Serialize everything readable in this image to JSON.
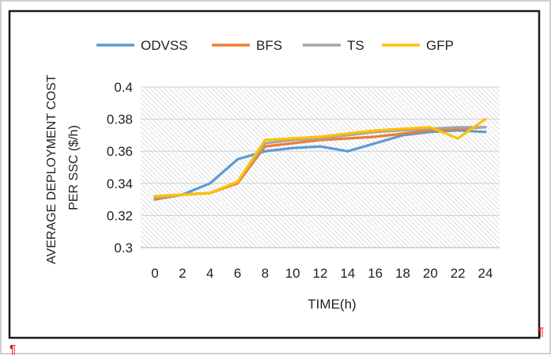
{
  "chart_data": {
    "type": "line",
    "xlabel": "TIME(h)",
    "ylabel_lines": [
      "AVERAGE DEPLOYMENT COST",
      "PER SSC ($/h)"
    ],
    "x": [
      0,
      2,
      4,
      6,
      8,
      10,
      12,
      14,
      16,
      18,
      20,
      22,
      24
    ],
    "x_ticks": [
      "0",
      "2",
      "4",
      "6",
      "8",
      "10",
      "12",
      "14",
      "16",
      "18",
      "20",
      "22",
      "24"
    ],
    "y_ticks": [
      "0.3",
      "0.32",
      "0.34",
      "0.36",
      "0.38",
      "0.4"
    ],
    "ylim": [
      0.3,
      0.4
    ],
    "xlim": [
      0,
      24
    ],
    "grid": true,
    "legend_position": "top",
    "series": [
      {
        "name": "ODVSS",
        "color": "#5b9bd5",
        "values": [
          0.33,
          0.333,
          0.34,
          0.355,
          0.36,
          0.362,
          0.363,
          0.36,
          0.365,
          0.37,
          0.372,
          0.373,
          0.372
        ]
      },
      {
        "name": "BFS",
        "color": "#ed7d31",
        "values": [
          0.33,
          0.333,
          0.334,
          0.34,
          0.363,
          0.365,
          0.367,
          0.368,
          0.369,
          0.371,
          0.373,
          0.374,
          0.375
        ]
      },
      {
        "name": "TS",
        "color": "#a5a5a5",
        "values": [
          0.331,
          0.333,
          0.334,
          0.341,
          0.365,
          0.367,
          0.368,
          0.37,
          0.372,
          0.373,
          0.374,
          0.375,
          0.375
        ]
      },
      {
        "name": "GFP",
        "color": "#ffc000",
        "values": [
          0.332,
          0.333,
          0.334,
          0.341,
          0.367,
          0.368,
          0.369,
          0.371,
          0.373,
          0.374,
          0.375,
          0.368,
          0.38
        ]
      }
    ]
  },
  "marks": {
    "pilcrow": "¶",
    "pilcrow_color": "#e00000"
  }
}
